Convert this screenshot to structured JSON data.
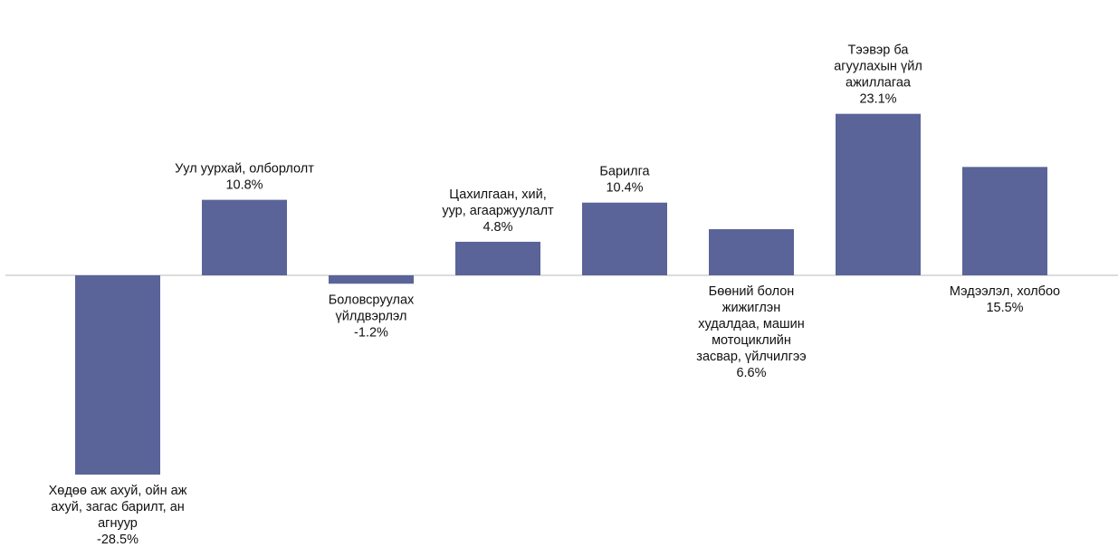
{
  "chart_data": {
    "type": "bar",
    "title": "",
    "xlabel": "",
    "ylabel": "",
    "categories": [
      [
        "Хөдөө аж ахуй, ойн аж",
        "ахуй, загас барилт, ан",
        "агнуур"
      ],
      [
        "Уул уурхай, олборлолт"
      ],
      [
        "Боловсруулах",
        "үйлдвэрлэл"
      ],
      [
        "Цахилгаан, хий,",
        "уур, агааржуулалт"
      ],
      [
        "Барилга"
      ],
      [
        "Бөөний болон",
        "жижиглэн",
        "худалдаа, машин",
        "мотоциклийн",
        "засвар, үйлчилгээ"
      ],
      [
        "Тээвэр ба",
        "агуулахын үйл",
        "ажиллагаа"
      ],
      [
        "Мэдээлэл, холбоо"
      ]
    ],
    "values": [
      -28.5,
      10.8,
      -1.2,
      4.8,
      10.4,
      6.6,
      23.1,
      15.5
    ],
    "value_labels": [
      "-28.5%",
      "10.8%",
      "-1.2%",
      "4.8%",
      "10.4%",
      "6.6%",
      "23.1%",
      "15.5%"
    ],
    "label_position": [
      "below",
      "above",
      "below",
      "above",
      "above",
      "below",
      "above",
      "below"
    ],
    "bar_color": "#5a6499",
    "axis_color": "#c8c8c8",
    "text_color": "#111111",
    "grid": false,
    "legend": "none",
    "y_axis_visible": false
  }
}
